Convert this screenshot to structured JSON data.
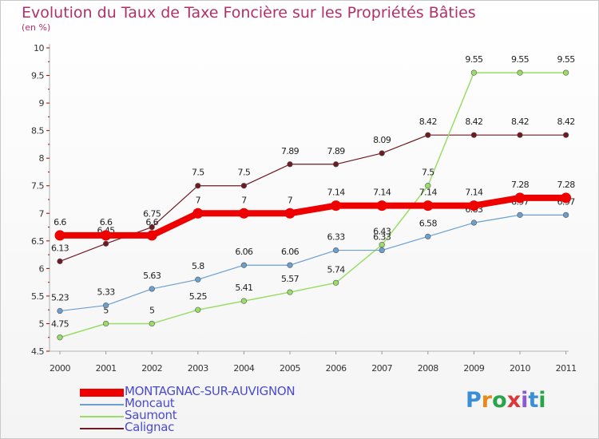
{
  "title": "Evolution du Taux de Taxe Foncière sur les Propriétés Bâties",
  "subtitle": "(en %)",
  "brand": {
    "letters": [
      "P",
      "r",
      "o",
      "x",
      "i",
      "t",
      "i"
    ],
    "colors": [
      "#3a8fd6",
      "#e88a1a",
      "#2aa44a",
      "#d83a3a",
      "#8a5ad0",
      "#3a8fd6",
      "#2aa44a"
    ]
  },
  "chart_data": {
    "type": "line",
    "x": [
      "2000",
      "2001",
      "2002",
      "2003",
      "2004",
      "2005",
      "2006",
      "2007",
      "2008",
      "2009",
      "2010",
      "2011"
    ],
    "ylim": [
      4.5,
      10
    ],
    "yticks": [
      4.5,
      5,
      5.5,
      6,
      6.5,
      7,
      7.5,
      8,
      8.5,
      9,
      9.5,
      10
    ],
    "ytick_labels": [
      "4.5",
      "5",
      "5.5",
      "6",
      "6.5",
      "7",
      "7.5",
      "8",
      "8.5",
      "9",
      "9.5",
      "10"
    ],
    "series": [
      {
        "name": "Calignac",
        "color": "#6e1a22",
        "width": 1.2,
        "values": [
          6.13,
          6.45,
          6.75,
          7.5,
          7.5,
          7.89,
          7.89,
          8.09,
          8.42,
          8.42,
          8.42,
          8.42
        ],
        "labels": [
          "6.13",
          "6.45",
          "6.75",
          "7.5",
          "7.5",
          "7.89",
          "7.89",
          "8.09",
          "8.42",
          "8.42",
          "8.42",
          "8.42"
        ]
      },
      {
        "name": "Saumont",
        "color": "#99dd66",
        "width": 1.5,
        "values": [
          4.75,
          5,
          5,
          5.25,
          5.41,
          5.57,
          5.74,
          6.43,
          7.5,
          9.55,
          9.55,
          9.55
        ],
        "labels": [
          "4.75",
          "5",
          "5",
          "5.25",
          "5.41",
          "5.57",
          "5.74",
          "6.43",
          "7.5",
          "9.55",
          "9.55",
          "9.55"
        ]
      },
      {
        "name": "Moncaut",
        "color": "#6a9fd0",
        "width": 1.2,
        "values": [
          5.23,
          5.33,
          5.63,
          5.8,
          6.06,
          6.06,
          6.33,
          6.33,
          6.58,
          6.83,
          6.97,
          6.97
        ],
        "labels": [
          "5.23",
          "5.33",
          "5.63",
          "5.8",
          "6.06",
          "6.06",
          "6.33",
          "6.33",
          "6.58",
          "6.83",
          "6.97",
          "6.97"
        ]
      },
      {
        "name": "MONTAGNAC-SUR-AUVIGNON",
        "color": "#ee0000",
        "width": 8,
        "values": [
          6.6,
          6.6,
          6.6,
          7,
          7,
          7,
          7.14,
          7.14,
          7.14,
          7.14,
          7.28,
          7.28
        ],
        "labels": [
          "6.6",
          "6.6",
          "6.6",
          "7",
          "7",
          "7",
          "7.14",
          "7.14",
          "7.14",
          "7.14",
          "7.28",
          "7.28"
        ]
      }
    ],
    "legend": [
      "MONTAGNAC-SUR-AUVIGNON",
      "Moncaut",
      "Saumont",
      "Calignac"
    ],
    "grid": false,
    "legend_position": "bottom-left"
  }
}
